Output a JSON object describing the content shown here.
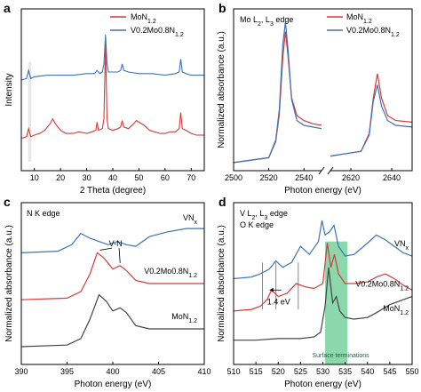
{
  "colors": {
    "red": "#d63a3a",
    "blue": "#3b73b5",
    "black": "#444444",
    "green": "#2eb86a"
  },
  "chart_data": [
    {
      "panel": "a",
      "type": "line",
      "xlabel": "2 Theta (degree)",
      "ylabel": "Intensity",
      "xlim": [
        5,
        75
      ],
      "xticks": [
        10,
        20,
        30,
        40,
        50,
        60,
        70
      ],
      "ylim": [
        0,
        10
      ],
      "ytick_labels": false,
      "legend": "top-right",
      "series": [
        {
          "name": "MoN1.2",
          "legend_main": "MoN",
          "legend_sub": "1.2",
          "color": "red",
          "x": [
            5,
            7,
            7.8,
            8.6,
            10,
            12,
            14,
            16,
            17,
            18,
            20,
            22,
            25,
            27,
            30,
            32,
            33.5,
            34,
            34.5,
            36,
            36.6,
            37.2,
            37.8,
            38.3,
            40,
            42,
            43,
            43.6,
            44.2,
            46,
            48,
            49,
            50,
            52,
            54,
            56,
            58,
            60,
            62,
            64,
            65.4,
            66,
            66.6,
            68,
            70,
            72,
            75
          ],
          "y": [
            2.0,
            2.1,
            2.6,
            2.1,
            2.2,
            2.3,
            2.5,
            2.9,
            3.2,
            2.9,
            2.5,
            2.3,
            2.3,
            2.4,
            2.3,
            2.4,
            2.5,
            3.0,
            2.5,
            2.6,
            3.2,
            7.8,
            3.2,
            2.6,
            2.5,
            2.6,
            2.7,
            3.1,
            2.7,
            2.6,
            2.9,
            3.1,
            3.0,
            2.8,
            2.5,
            2.4,
            2.3,
            2.3,
            2.4,
            2.4,
            2.6,
            3.6,
            2.6,
            2.5,
            2.3,
            2.2,
            2.2
          ]
        },
        {
          "name": "V0.2Mo0.8N1.2",
          "legend_main": "V0.2Mo0.8N",
          "legend_sub": "1.2",
          "color": "blue",
          "x": [
            5,
            7,
            7.8,
            8.6,
            10,
            15,
            20,
            25,
            30,
            33,
            34,
            35,
            36,
            36.6,
            37.2,
            37.8,
            38.3,
            40,
            42,
            43,
            43.6,
            44.2,
            46,
            50,
            55,
            60,
            64,
            65.4,
            66,
            66.6,
            68,
            70,
            75
          ],
          "y": [
            5.6,
            5.7,
            6.2,
            5.7,
            5.8,
            5.9,
            5.9,
            5.9,
            6.0,
            6.0,
            6.2,
            6.0,
            6.1,
            6.6,
            8.4,
            6.6,
            6.1,
            6.1,
            6.1,
            6.2,
            6.6,
            6.2,
            6.1,
            6.0,
            6.0,
            5.9,
            6.0,
            6.1,
            6.9,
            6.1,
            6.0,
            5.9,
            5.9
          ]
        }
      ]
    },
    {
      "panel": "b",
      "type": "line",
      "title": "Mo L2, L3 edge",
      "title_main": "Mo L",
      "title_sub1": "2",
      "title_mid": ", L",
      "title_sub2": "3",
      "title_end": " edge",
      "xlabel": "Photon energy (eV)",
      "ylabel": "Normalized absorbance (a.u.)",
      "broken_axis": true,
      "segments": [
        {
          "xlim": [
            2500,
            2550
          ],
          "xticks": [
            2500,
            2520,
            2540
          ]
        },
        {
          "xlim": [
            2610,
            2650
          ],
          "xticks": [
            2620,
            2640
          ]
        }
      ],
      "ylim": [
        0,
        10
      ],
      "legend": "top-right",
      "series": [
        {
          "name": "MoN1.2",
          "legend_main": "MoN",
          "legend_sub": "1.2",
          "color": "red",
          "x": [
            2500,
            2520,
            2524,
            2526,
            2528,
            2529.5,
            2531,
            2533,
            2536,
            2540,
            2545,
            2550,
            2610,
            2625,
            2629,
            2631,
            2633,
            2635,
            2638,
            2642,
            2650
          ],
          "y": [
            0.5,
            0.8,
            1.8,
            3.5,
            7.0,
            8.6,
            7.0,
            4.5,
            3.4,
            3.1,
            2.9,
            2.8,
            0.9,
            1.2,
            2.3,
            4.5,
            6.0,
            4.5,
            3.4,
            3.1,
            3.0
          ]
        },
        {
          "name": "V0.2Mo0.8N1.2",
          "legend_main": "V0.2Mo0.8N",
          "legend_sub": "1.2",
          "color": "blue",
          "x": [
            2500,
            2520,
            2524,
            2526,
            2528,
            2529.5,
            2531,
            2533,
            2536,
            2540,
            2545,
            2550,
            2610,
            2625,
            2629,
            2631,
            2633,
            2635,
            2638,
            2642,
            2650
          ],
          "y": [
            0.5,
            0.8,
            1.9,
            3.8,
            7.8,
            9.2,
            7.4,
            4.4,
            3.1,
            2.8,
            2.7,
            2.6,
            0.9,
            1.2,
            2.2,
            4.3,
            5.3,
            4.0,
            3.1,
            2.8,
            2.7
          ]
        }
      ]
    },
    {
      "panel": "c",
      "type": "line",
      "title": "N K edge",
      "xlabel": "Photon energy (eV)",
      "ylabel": "Normalized absorbance (a.u.)",
      "xlim": [
        390,
        410
      ],
      "xticks": [
        390,
        395,
        400,
        405,
        410
      ],
      "ylim": [
        0,
        10
      ],
      "series": [
        {
          "name": "VNx",
          "label_main": "VN",
          "label_sub": "x",
          "color": "blue",
          "x": [
            390,
            394,
            395.5,
            396.5,
            397.5,
            398.5,
            399.5,
            400.5,
            401.5,
            402.5,
            404,
            406,
            408,
            410
          ],
          "y": [
            6.9,
            7.0,
            7.4,
            8.1,
            7.8,
            7.6,
            7.4,
            7.6,
            7.4,
            7.3,
            7.9,
            8.2,
            8.4,
            8.4
          ]
        },
        {
          "name": "V0.2Mo0.8N1.2",
          "label_main": "V0.2Mo0.8N",
          "label_sub": "1.2",
          "color": "red",
          "x": [
            390,
            395,
            396.5,
            397.5,
            398.3,
            399,
            400,
            400.8,
            401.5,
            402.5,
            404,
            406,
            408,
            410
          ],
          "y": [
            4.0,
            4.1,
            4.5,
            5.6,
            6.9,
            6.6,
            5.9,
            6.1,
            5.8,
            5.2,
            5.0,
            5.0,
            5.0,
            5.0
          ]
        },
        {
          "name": "MoN1.2",
          "label_main": "MoN",
          "label_sub": "1.2",
          "color": "black",
          "x": [
            390,
            395,
            396.5,
            397.5,
            398.5,
            399.3,
            400,
            400.8,
            401.5,
            402.5,
            404,
            406,
            408,
            410
          ],
          "y": [
            1.1,
            1.2,
            1.6,
            2.8,
            4.3,
            3.9,
            3.3,
            3.5,
            3.2,
            2.4,
            2.2,
            2.2,
            2.2,
            2.2
          ]
        }
      ],
      "annotations": [
        {
          "text": "V-N",
          "x": 400.3,
          "y": 7.3
        }
      ]
    },
    {
      "panel": "d",
      "type": "line",
      "title_line1": "V L2, L3 edge",
      "title_line1_main": "V L",
      "title_line1_sub1": "2",
      "title_line1_mid": ", L",
      "title_line1_sub2": "3",
      "title_line1_end": " edge",
      "title_line2": "O K edge",
      "xlabel": "Photon energy (eV)",
      "ylabel": "Normalized absorbance (a.u.)",
      "xlim": [
        510,
        550
      ],
      "xticks": [
        510,
        515,
        520,
        525,
        530,
        535,
        540,
        545,
        550
      ],
      "ylim": [
        0,
        10
      ],
      "highlight": {
        "x0": 530.5,
        "x1": 535.5,
        "label": "Surface terminations"
      },
      "shift_annotation": {
        "text": "1.4 eV",
        "x_from": 519.5,
        "x_to": 518.1,
        "y": 4.6
      },
      "vlines": [
        516.5,
        519.5,
        524.5
      ],
      "series": [
        {
          "name": "VNx",
          "label_main": "VN",
          "label_sub": "x",
          "color": "blue",
          "x": [
            510,
            514,
            516,
            518,
            519.5,
            521,
            523,
            525,
            527,
            529,
            529.8,
            530.5,
            531.5,
            532.5,
            533.5,
            535,
            537,
            540,
            542,
            544,
            546,
            548,
            550
          ],
          "y": [
            5.3,
            5.4,
            5.6,
            5.9,
            6.4,
            6.0,
            6.3,
            7.3,
            6.8,
            7.6,
            8.9,
            8.0,
            8.2,
            8.6,
            7.3,
            6.7,
            6.8,
            7.5,
            8.0,
            7.7,
            7.3,
            6.9,
            6.7
          ]
        },
        {
          "name": "V0.2Mo0.8N1.2",
          "label_main": "V0.2Mo0.8N",
          "label_sub": "1.2",
          "color": "red",
          "x": [
            510,
            514,
            516,
            517.5,
            518.5,
            520,
            522,
            524,
            526,
            528,
            530,
            531,
            531.8,
            532.6,
            533.5,
            535,
            537,
            540,
            542,
            544,
            546,
            548,
            550
          ],
          "y": [
            3.3,
            3.4,
            3.6,
            4.0,
            4.6,
            4.2,
            4.4,
            5.0,
            4.8,
            4.7,
            5.0,
            7.5,
            6.0,
            6.8,
            5.6,
            5.0,
            5.0,
            5.1,
            5.4,
            5.6,
            5.3,
            4.9,
            4.6
          ]
        },
        {
          "name": "MoN1.2",
          "label_main": "MoN",
          "label_sub": "1.2",
          "color": "black",
          "x": [
            510,
            515,
            520,
            525,
            528,
            529.5,
            530.5,
            531.3,
            532.2,
            533,
            533.8,
            535,
            537,
            540,
            542,
            545,
            548,
            550
          ],
          "y": [
            1.5,
            1.5,
            1.6,
            1.6,
            1.7,
            2.0,
            3.6,
            6.0,
            3.8,
            4.2,
            3.3,
            2.9,
            2.8,
            2.9,
            3.2,
            3.7,
            4.0,
            4.2
          ]
        }
      ]
    }
  ]
}
